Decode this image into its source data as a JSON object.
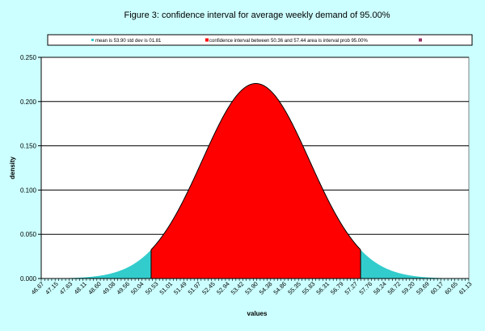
{
  "chart_data": {
    "type": "area",
    "title": "Figure 3:  confidence interval for average weekly demand of 95.00%",
    "xlabel": "values",
    "ylabel": "density",
    "distribution": {
      "mean": 53.9,
      "std_dev": 1.81
    },
    "interval": {
      "low": 50.36,
      "high": 57.44,
      "probability": "95.00%"
    },
    "ylim": [
      0,
      0.25
    ],
    "yticks": [
      "0.000",
      "0.050",
      "0.100",
      "0.150",
      "0.200",
      "0.250"
    ],
    "xlim": [
      46.67,
      61.13
    ],
    "xticks": [
      "46.67",
      "47.15",
      "47.63",
      "48.11",
      "48.60",
      "49.08",
      "49.56",
      "50.04",
      "50.53",
      "51.01",
      "51.49",
      "51.97",
      "52.45",
      "52.94",
      "53.42",
      "53.90",
      "54.38",
      "54.86",
      "55.35",
      "55.83",
      "56.31",
      "56.79",
      "57.27",
      "57.76",
      "58.24",
      "58.72",
      "59.20",
      "59.69",
      "60.17",
      "60.65",
      "61.13"
    ],
    "grid": true,
    "legend_position": "top",
    "series": [
      {
        "name": "mean is 53.90 std dev is 01.81",
        "color": "#33cccc"
      },
      {
        "name": "confidence interval between 50.36 and 57.44 area is interval prob  95.00%",
        "color": "#ff0000"
      },
      {
        "name": "",
        "color": "#993366"
      }
    ]
  }
}
